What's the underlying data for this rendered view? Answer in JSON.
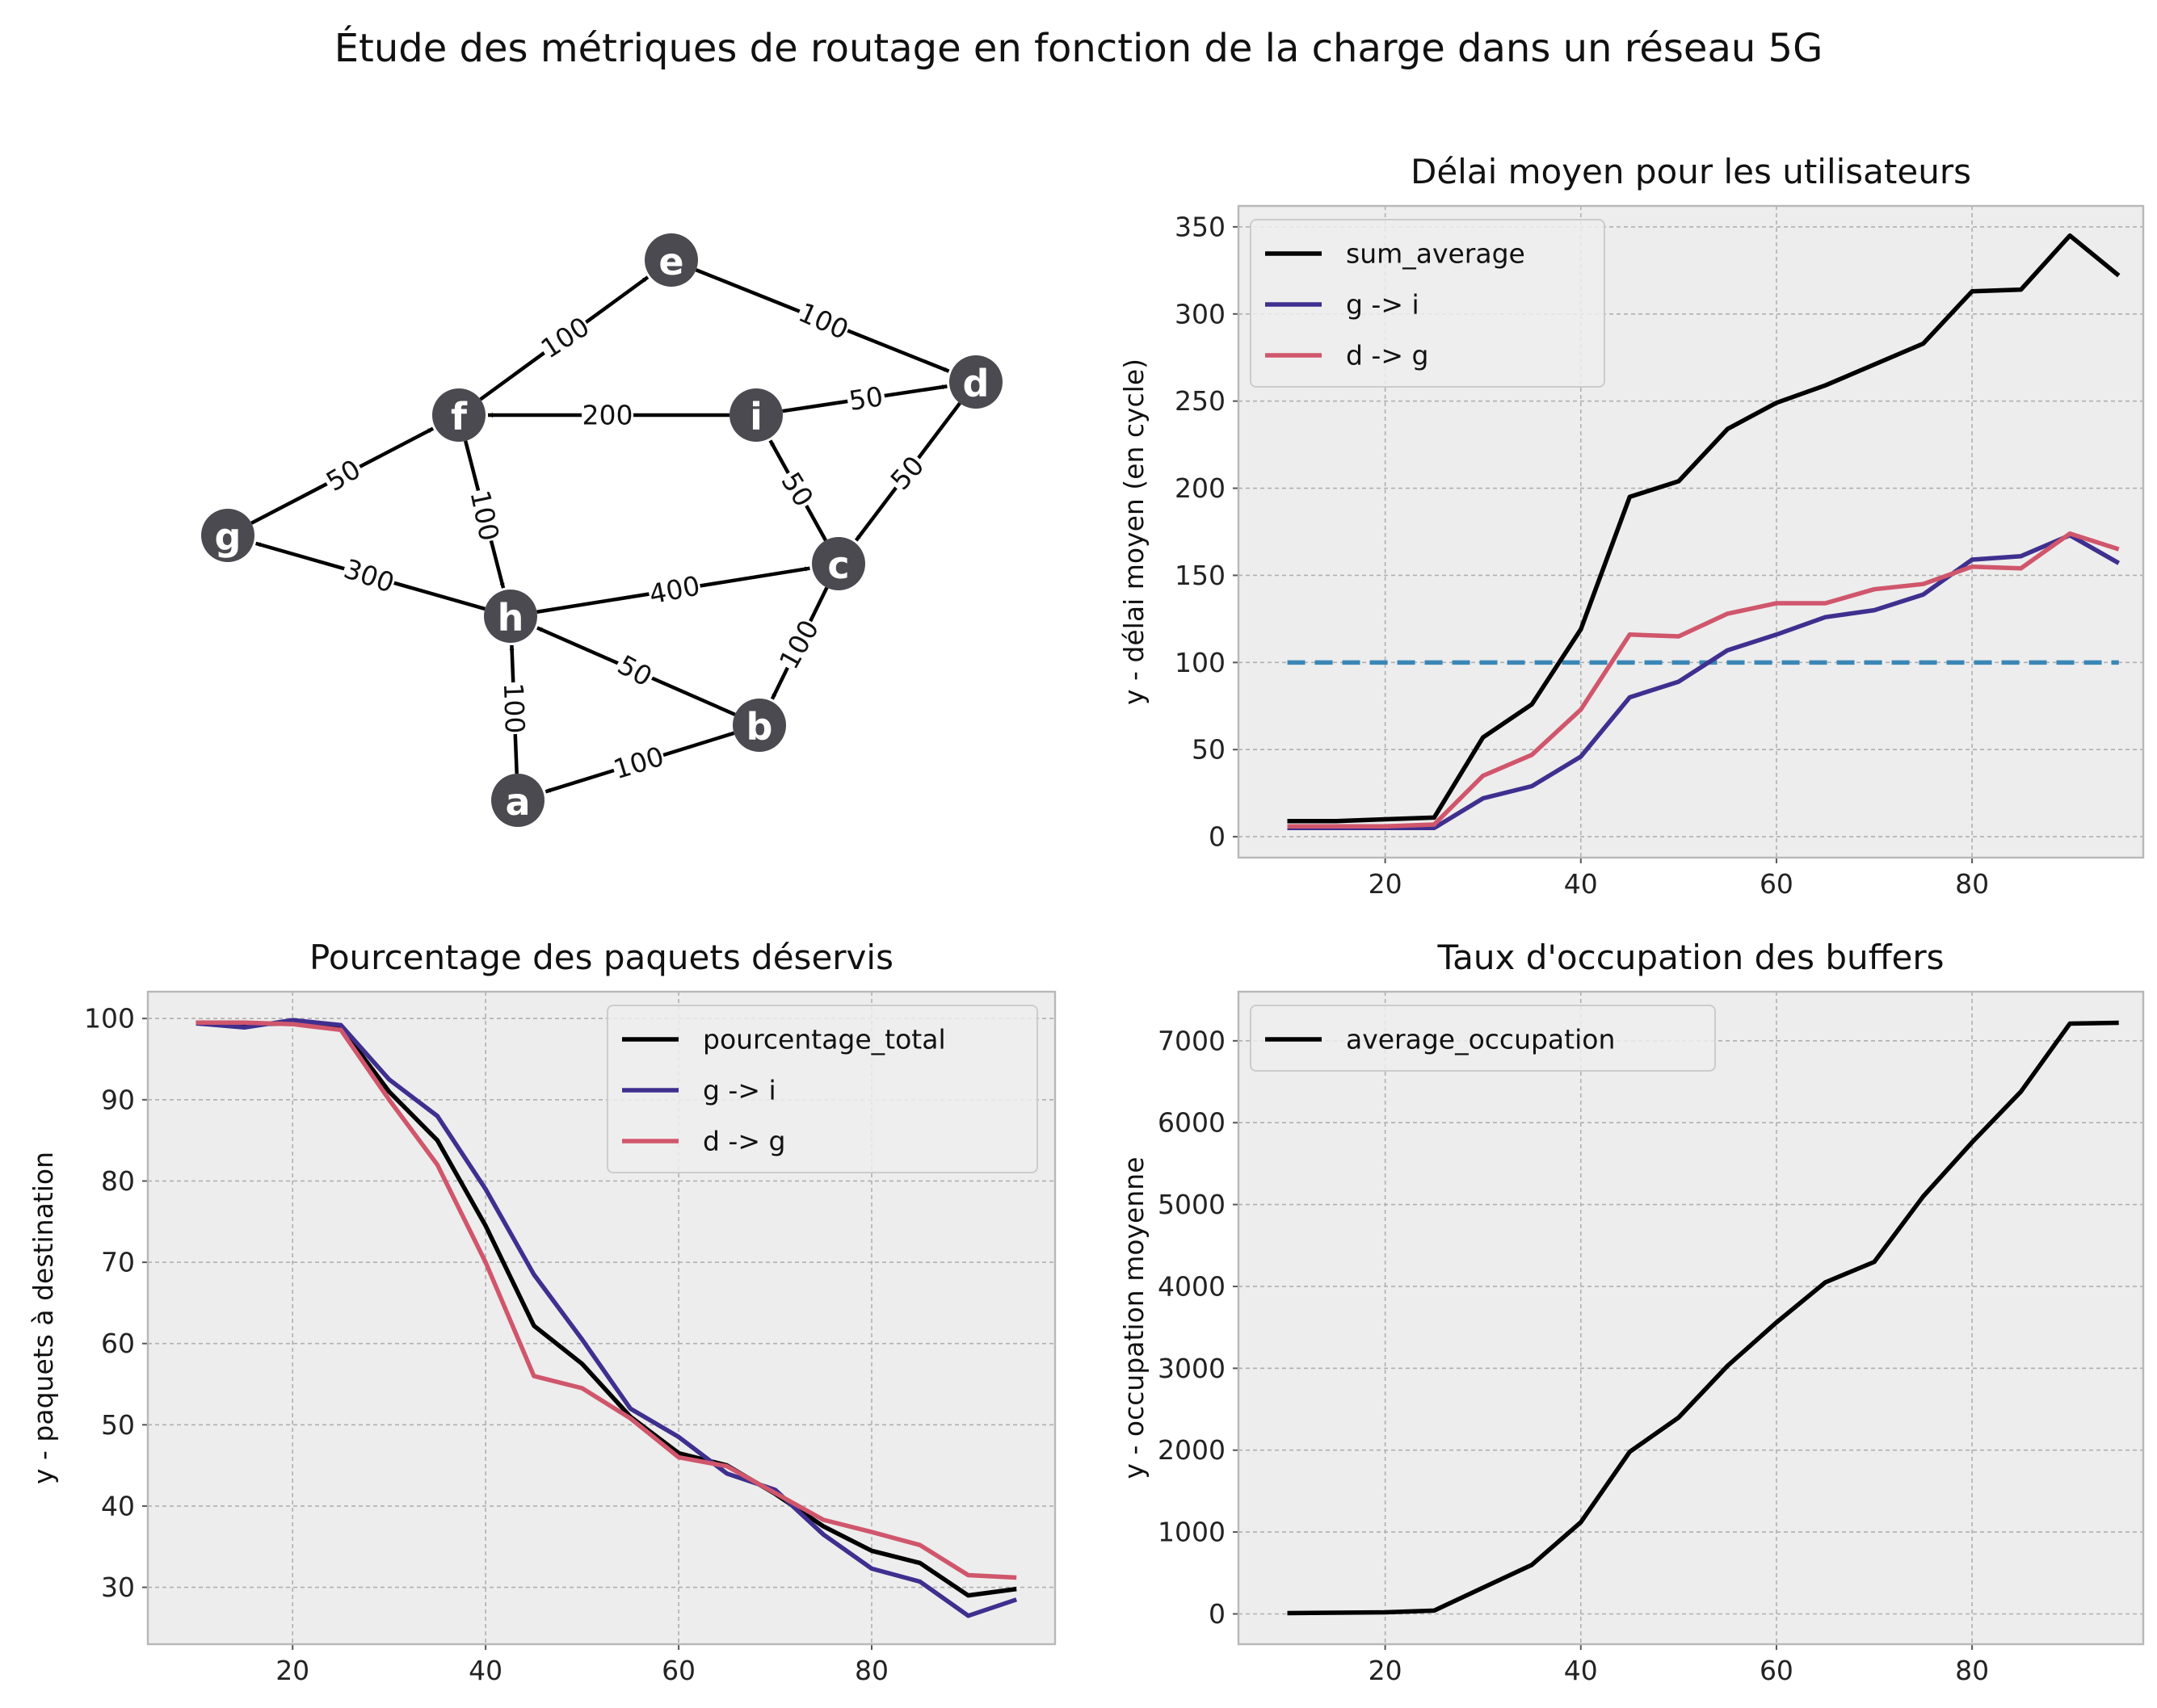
{
  "figure_title": "Étude des métriques de routage en fonction de la charge dans un réseau 5G",
  "colors": {
    "background": "#ffffff",
    "axes_face": "#ededed",
    "grid": "#b0b0b0",
    "node": "#4a4a50",
    "node_text": "#ffffff",
    "edge": "#000000",
    "sum": "#000000",
    "g_i": "#3f2f8f",
    "d_g": "#d0566c",
    "threshold": "#3a87b7"
  },
  "graph": {
    "nodes": [
      {
        "id": "a",
        "label": "a"
      },
      {
        "id": "b",
        "label": "b"
      },
      {
        "id": "c",
        "label": "c"
      },
      {
        "id": "d",
        "label": "d"
      },
      {
        "id": "e",
        "label": "e"
      },
      {
        "id": "f",
        "label": "f"
      },
      {
        "id": "g",
        "label": "g"
      },
      {
        "id": "h",
        "label": "h"
      },
      {
        "id": "i",
        "label": "i"
      }
    ],
    "edges": [
      {
        "from": "g",
        "to": "f",
        "label": "50"
      },
      {
        "from": "f",
        "to": "e",
        "label": "100"
      },
      {
        "from": "e",
        "to": "d",
        "label": "100"
      },
      {
        "from": "i",
        "to": "f",
        "label": "200"
      },
      {
        "from": "i",
        "to": "d",
        "label": "50"
      },
      {
        "from": "d",
        "to": "c",
        "label": "50"
      },
      {
        "from": "c",
        "to": "i",
        "label": "50"
      },
      {
        "from": "f",
        "to": "h",
        "label": "100"
      },
      {
        "from": "h",
        "to": "g",
        "label": "300"
      },
      {
        "from": "h",
        "to": "c",
        "label": "400"
      },
      {
        "from": "c",
        "to": "b",
        "label": "100"
      },
      {
        "from": "b",
        "to": "h",
        "label": "50"
      },
      {
        "from": "a",
        "to": "h",
        "label": "100"
      },
      {
        "from": "b",
        "to": "a",
        "label": "100"
      }
    ]
  },
  "chart_data": [
    {
      "type": "line",
      "title": "Délai moyen pour les utilisateurs",
      "xlabel": "",
      "ylabel": "y - délai moyen (en cycle)",
      "xlim": [
        5,
        97.5
      ],
      "ylim": [
        -12,
        362
      ],
      "xticks": [
        20,
        40,
        60,
        80
      ],
      "yticks": [
        0,
        50,
        100,
        150,
        200,
        250,
        300,
        350
      ],
      "grid": true,
      "legend": "top-left",
      "x": [
        10,
        15,
        20,
        25,
        30,
        35,
        40,
        45,
        50,
        55,
        60,
        65,
        70,
        75,
        80,
        85,
        90,
        95
      ],
      "series": [
        {
          "name": "sum_average",
          "color": "#000000",
          "values": [
            9,
            9,
            10,
            11,
            57,
            76,
            119,
            195,
            204,
            234,
            249,
            259,
            271,
            283,
            313,
            314,
            345,
            322
          ]
        },
        {
          "name": "g -> i",
          "color": "#3f2f8f",
          "values": [
            5,
            5,
            5,
            5,
            22,
            29,
            46,
            80,
            89,
            107,
            116,
            126,
            130,
            139,
            159,
            161,
            173,
            157
          ]
        },
        {
          "name": "d -> g",
          "color": "#d0566c",
          "values": [
            6,
            6,
            6,
            7,
            35,
            47,
            73,
            116,
            115,
            128,
            134,
            134,
            142,
            145,
            155,
            154,
            174,
            165
          ]
        }
      ],
      "reference_line": {
        "y": 100,
        "x": [
          10,
          95
        ],
        "style": "dashed",
        "color": "#3a87b7"
      }
    },
    {
      "type": "line",
      "title": "Pourcentage des paquets déservis",
      "xlabel": "",
      "ylabel": "y - paquets à destination",
      "xlim": [
        5,
        99
      ],
      "ylim": [
        23,
        103.3
      ],
      "xticks": [
        20,
        40,
        60,
        80
      ],
      "yticks": [
        30,
        40,
        50,
        60,
        70,
        80,
        90,
        100
      ],
      "grid": true,
      "legend": "top-right",
      "x": [
        10,
        15,
        20,
        25,
        30,
        35,
        40,
        45,
        50,
        55,
        60,
        65,
        70,
        75,
        80,
        85,
        90,
        95
      ],
      "series": [
        {
          "name": "pourcentage_total",
          "color": "#000000",
          "values": [
            99.5,
            99.3,
            99.4,
            98.9,
            91,
            85,
            74.5,
            62.2,
            57.5,
            51,
            46.5,
            45,
            41.5,
            37.5,
            34.5,
            33,
            29,
            29.8
          ]
        },
        {
          "name": "g -> i",
          "color": "#3f2f8f",
          "values": [
            99.4,
            98.9,
            99.8,
            99.2,
            92.5,
            88,
            79,
            68.5,
            60.5,
            52,
            48.5,
            44,
            42,
            36.5,
            32.3,
            30.7,
            26.5,
            28.5
          ]
        },
        {
          "name": "d -> g",
          "color": "#d0566c",
          "values": [
            99.5,
            99.5,
            99.3,
            98.6,
            90,
            82,
            70,
            56,
            54.5,
            50.8,
            46,
            44.9,
            41.6,
            38.3,
            36.8,
            35.2,
            31.5,
            31.2
          ]
        }
      ]
    },
    {
      "type": "line",
      "title": "Taux d'occupation des buffers",
      "xlabel": "",
      "ylabel": "y - occupation moyenne",
      "xlim": [
        5,
        97.5
      ],
      "ylim": [
        -370,
        7600
      ],
      "xticks": [
        20,
        40,
        60,
        80
      ],
      "yticks": [
        0,
        1000,
        2000,
        3000,
        4000,
        5000,
        6000,
        7000
      ],
      "grid": true,
      "legend": "top-left",
      "x": [
        10,
        15,
        20,
        25,
        30,
        35,
        40,
        45,
        50,
        55,
        60,
        65,
        70,
        75,
        80,
        85,
        90,
        95
      ],
      "series": [
        {
          "name": "average_occupation",
          "color": "#000000",
          "values": [
            10,
            15,
            20,
            40,
            320,
            600,
            1120,
            1980,
            2400,
            3030,
            3560,
            4050,
            4300,
            5100,
            5760,
            6380,
            7210,
            7220
          ]
        }
      ]
    }
  ]
}
